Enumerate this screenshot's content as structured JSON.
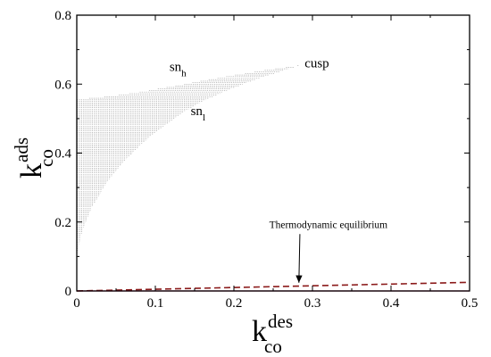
{
  "chart_data": {
    "type": "area",
    "xlim": [
      0,
      0.5
    ],
    "ylim": [
      0,
      0.8
    ],
    "xticks": [
      0,
      0.1,
      0.2,
      0.3,
      0.4,
      0.5
    ],
    "yticks": [
      0,
      0.2,
      0.4,
      0.6,
      0.8
    ],
    "xtick_labels": [
      "0",
      "0.1",
      "0.2",
      "0.3",
      "0.4",
      "0.5"
    ],
    "ytick_labels": [
      "0",
      "0.2",
      "0.4",
      "0.6",
      "0.8"
    ],
    "xlabel": {
      "base": "k",
      "sup": "des",
      "sub": "co"
    },
    "ylabel": {
      "base": "k",
      "sup": "ads",
      "sub": "co"
    },
    "grid": false,
    "series": [
      {
        "name": "sn_h",
        "x": [
          0,
          0.02,
          0.05,
          0.08,
          0.11,
          0.14,
          0.17,
          0.2,
          0.23,
          0.26,
          0.285
        ],
        "y": [
          0.555,
          0.56,
          0.567,
          0.577,
          0.589,
          0.601,
          0.614,
          0.626,
          0.637,
          0.647,
          0.655
        ]
      },
      {
        "name": "sn_l",
        "x": [
          0,
          0.005,
          0.01,
          0.02,
          0.04,
          0.06,
          0.08,
          0.1,
          0.13,
          0.16,
          0.19,
          0.22,
          0.25,
          0.285
        ],
        "y": [
          0.1,
          0.155,
          0.19,
          0.245,
          0.32,
          0.375,
          0.42,
          0.46,
          0.51,
          0.55,
          0.58,
          0.607,
          0.63,
          0.655
        ]
      },
      {
        "name": "thermodynamic-equilibrium",
        "style": "dashed",
        "color": "#8b1a1a",
        "x": [
          0,
          0.5
        ],
        "y": [
          0,
          0.025
        ]
      },
      {
        "name": "baseline",
        "color": "#c2185b",
        "x": [
          0,
          0.5
        ],
        "y": [
          0,
          0
        ]
      }
    ],
    "annotations": [
      {
        "id": "sn-h",
        "base": "sn",
        "sub": "h",
        "x": 0.118,
        "y": 0.638
      },
      {
        "id": "sn-l",
        "base": "sn",
        "sub": "l",
        "x": 0.145,
        "y": 0.51
      },
      {
        "id": "cusp",
        "text": "cusp",
        "x": 0.29,
        "y": 0.648
      },
      {
        "id": "thermo",
        "text": "Thermodynamic equilibrium",
        "x": 0.245,
        "y": 0.183,
        "arrow_to": [
          0.285,
          0.016
        ]
      }
    ]
  }
}
